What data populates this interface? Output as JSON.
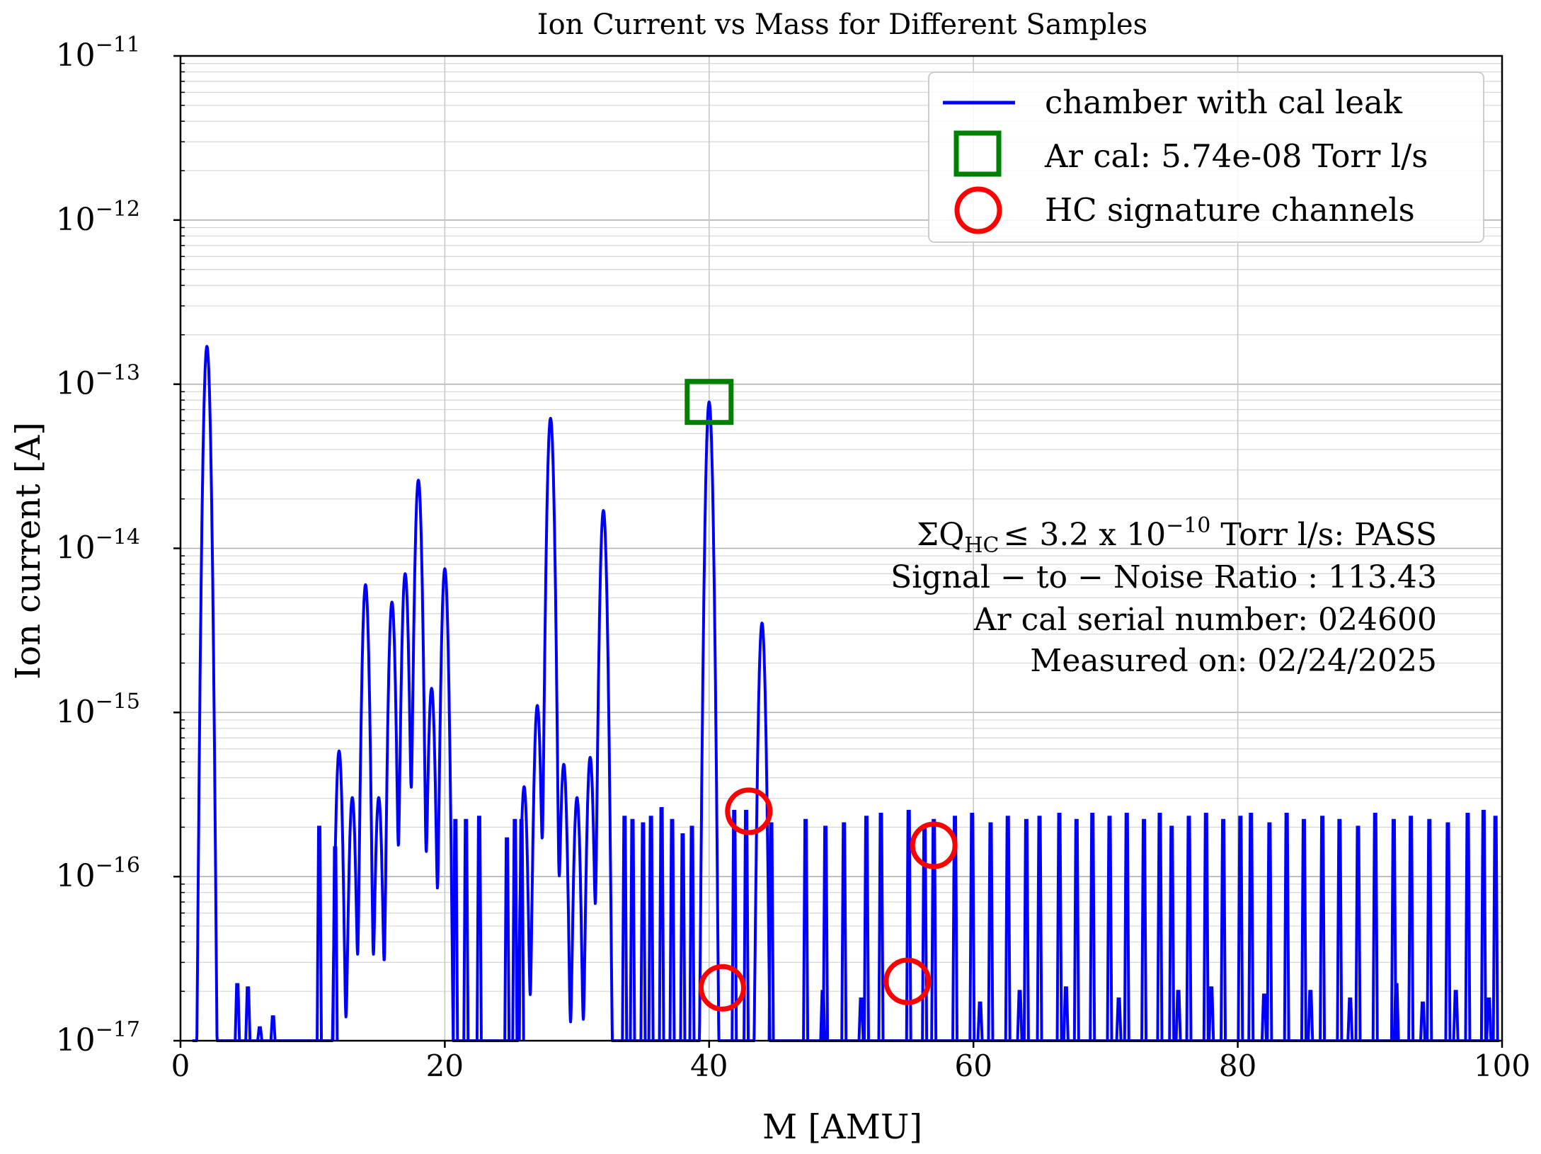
{
  "chart_data": {
    "type": "line",
    "title": "Ion Current vs Mass for Different Samples",
    "xlabel": "M [AMU]",
    "ylabel": "Ion current [A]",
    "xlim": [
      0,
      100
    ],
    "ylim": [
      1e-17,
      1e-11
    ],
    "yscale": "log",
    "grid": true,
    "legend_position": "top-right",
    "x_ticks": [
      "0",
      "20",
      "40",
      "60",
      "80",
      "100"
    ],
    "y_ticks": [
      {
        "base": "10",
        "exp": "−11"
      },
      {
        "base": "10",
        "exp": "−12"
      },
      {
        "base": "10",
        "exp": "−13"
      },
      {
        "base": "10",
        "exp": "−14"
      },
      {
        "base": "10",
        "exp": "−15"
      },
      {
        "base": "10",
        "exp": "−16"
      },
      {
        "base": "10",
        "exp": "−17"
      }
    ],
    "legend": {
      "line_label": "chamber with cal leak",
      "square_label": "Ar cal: 5.74e-08 Torr l/s",
      "circle_label": "HC signature channels"
    },
    "annotations": {
      "line1": {
        "sigma": "ΣQ",
        "sub": "HC",
        "pre": "≤  3.2 x 10",
        "exp": "−10",
        "post": " Torr l/s:  PASS"
      },
      "line2": "Signal − to − Noise Ratio :  113.43",
      "line3": "Ar cal serial number: 024600",
      "line4": "Measured on: 02/24/2025"
    },
    "colors": {
      "series": "#0000ff",
      "cal_marker": "#008000",
      "hc_marker": "#ff0000"
    },
    "series": [
      {
        "name": "chamber with cal leak",
        "peaks": [
          {
            "m": 2.0,
            "i": 1.7e-13
          },
          {
            "m": 12.0,
            "i": 5.8e-16
          },
          {
            "m": 13.0,
            "i": 3e-16
          },
          {
            "m": 14.0,
            "i": 6e-15
          },
          {
            "m": 15.0,
            "i": 3e-16
          },
          {
            "m": 16.0,
            "i": 4.7e-15
          },
          {
            "m": 17.0,
            "i": 7e-15
          },
          {
            "m": 18.0,
            "i": 2.6e-14
          },
          {
            "m": 19.0,
            "i": 1.4e-15
          },
          {
            "m": 20.0,
            "i": 7.5e-15
          },
          {
            "m": 26.0,
            "i": 3.5e-16
          },
          {
            "m": 27.0,
            "i": 1.1e-15
          },
          {
            "m": 28.0,
            "i": 6.2e-14
          },
          {
            "m": 29.0,
            "i": 4.8e-16
          },
          {
            "m": 30.0,
            "i": 3e-16
          },
          {
            "m": 31.0,
            "i": 5.3e-16
          },
          {
            "m": 32.0,
            "i": 1.7e-14
          },
          {
            "m": 40.0,
            "i": 7.8e-14
          },
          {
            "m": 44.0,
            "i": 3.5e-15
          }
        ],
        "noise_spikes": [
          {
            "m": 10.5,
            "i": 2e-16
          },
          {
            "m": 11.7,
            "i": 1.5e-16
          },
          {
            "m": 20.8,
            "i": 2.2e-16
          },
          {
            "m": 21.6,
            "i": 2.2e-16
          },
          {
            "m": 22.6,
            "i": 2.3e-16
          },
          {
            "m": 24.7,
            "i": 1.7e-16
          },
          {
            "m": 25.3,
            "i": 2.2e-16
          },
          {
            "m": 25.8,
            "i": 2.2e-16
          },
          {
            "m": 33.6,
            "i": 2.3e-16
          },
          {
            "m": 34.2,
            "i": 2.2e-16
          },
          {
            "m": 35.0,
            "i": 2.1e-16
          },
          {
            "m": 35.6,
            "i": 2.3e-16
          },
          {
            "m": 36.4,
            "i": 2.6e-16
          },
          {
            "m": 37.2,
            "i": 2.2e-16
          },
          {
            "m": 38.0,
            "i": 1.8e-16
          },
          {
            "m": 38.7,
            "i": 2e-16
          },
          {
            "m": 41.9,
            "i": 2.5e-16
          },
          {
            "m": 42.8,
            "i": 2.5e-16
          },
          {
            "m": 44.7,
            "i": 2.1e-16
          },
          {
            "m": 47.3,
            "i": 2.2e-16
          },
          {
            "m": 48.8,
            "i": 2e-16
          },
          {
            "m": 50.2,
            "i": 2.1e-16
          },
          {
            "m": 51.9,
            "i": 2.3e-16
          },
          {
            "m": 53.0,
            "i": 2.4e-16
          },
          {
            "m": 55.1,
            "i": 2.5e-16
          },
          {
            "m": 56.3,
            "i": 2e-16
          },
          {
            "m": 57.0,
            "i": 2.2e-16
          },
          {
            "m": 58.6,
            "i": 2.3e-16
          },
          {
            "m": 59.9,
            "i": 2.4e-16
          },
          {
            "m": 61.3,
            "i": 2.1e-16
          },
          {
            "m": 62.6,
            "i": 2.3e-16
          },
          {
            "m": 64.0,
            "i": 2.2e-16
          },
          {
            "m": 65.0,
            "i": 2.3e-16
          },
          {
            "m": 66.5,
            "i": 2.4e-16
          },
          {
            "m": 67.8,
            "i": 2.2e-16
          },
          {
            "m": 69.0,
            "i": 2.4e-16
          },
          {
            "m": 70.3,
            "i": 2.3e-16
          },
          {
            "m": 71.6,
            "i": 2.4e-16
          },
          {
            "m": 72.9,
            "i": 2.2e-16
          },
          {
            "m": 74.1,
            "i": 2.4e-16
          },
          {
            "m": 75.0,
            "i": 2e-16
          },
          {
            "m": 76.3,
            "i": 2.3e-16
          },
          {
            "m": 77.6,
            "i": 2.4e-16
          },
          {
            "m": 78.9,
            "i": 2.2e-16
          },
          {
            "m": 80.2,
            "i": 2.3e-16
          },
          {
            "m": 81.0,
            "i": 2.4e-16
          },
          {
            "m": 82.4,
            "i": 2.1e-16
          },
          {
            "m": 83.7,
            "i": 2.4e-16
          },
          {
            "m": 85.0,
            "i": 2.2e-16
          },
          {
            "m": 86.4,
            "i": 2.3e-16
          },
          {
            "m": 87.7,
            "i": 2.2e-16
          },
          {
            "m": 89.1,
            "i": 2e-16
          },
          {
            "m": 90.4,
            "i": 2.4e-16
          },
          {
            "m": 91.8,
            "i": 2.2e-16
          },
          {
            "m": 93.1,
            "i": 2.3e-16
          },
          {
            "m": 94.5,
            "i": 2.2e-16
          },
          {
            "m": 95.9,
            "i": 2.1e-16
          },
          {
            "m": 97.4,
            "i": 2.4e-16
          },
          {
            "m": 98.6,
            "i": 2.5e-16
          },
          {
            "m": 99.5,
            "i": 2.3e-16
          }
        ],
        "floor_spikes": [
          {
            "m": 4.3,
            "i": 2.2e-17
          },
          {
            "m": 5.1,
            "i": 2.1e-17
          },
          {
            "m": 6.0,
            "i": 1.2e-17
          },
          {
            "m": 7.0,
            "i": 1.4e-17
          },
          {
            "m": 48.6,
            "i": 2e-17
          },
          {
            "m": 51.5,
            "i": 1.8e-17
          },
          {
            "m": 60.5,
            "i": 1.7e-17
          },
          {
            "m": 63.5,
            "i": 2e-17
          },
          {
            "m": 67.0,
            "i": 2.1e-17
          },
          {
            "m": 71.0,
            "i": 1.8e-17
          },
          {
            "m": 75.5,
            "i": 2e-17
          },
          {
            "m": 78.0,
            "i": 2.1e-17
          },
          {
            "m": 82.0,
            "i": 1.9e-17
          },
          {
            "m": 85.5,
            "i": 2e-17
          },
          {
            "m": 88.5,
            "i": 1.8e-17
          },
          {
            "m": 92.0,
            "i": 2.2e-17
          },
          {
            "m": 94.0,
            "i": 1.7e-17
          },
          {
            "m": 96.5,
            "i": 2e-17
          },
          {
            "m": 99.0,
            "i": 1.8e-17
          }
        ]
      }
    ],
    "markers": {
      "ar_cal": {
        "m": 40.0,
        "i": 7.8e-14
      },
      "hc_channels": [
        {
          "m": 41.0,
          "i": 2.1e-17
        },
        {
          "m": 43.0,
          "i": 2.5e-16
        },
        {
          "m": 55.0,
          "i": 2.3e-17
        },
        {
          "m": 57.0,
          "i": 1.55e-16
        }
      ]
    }
  }
}
